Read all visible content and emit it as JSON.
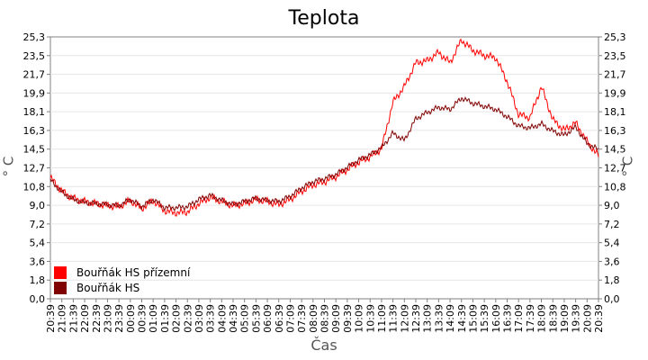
{
  "chart_data": {
    "type": "line",
    "title": "Teplota",
    "xlabel": "Čas",
    "ylabel": "° C",
    "ylim": [
      0,
      25.3
    ],
    "yticks": [
      "0,0",
      "1,8",
      "3,6",
      "5,4",
      "7,2",
      "9,0",
      "10,8",
      "12,7",
      "14,5",
      "16,3",
      "18,1",
      "19,9",
      "21,7",
      "23,5",
      "25,3"
    ],
    "xticks": [
      "20:39",
      "21:09",
      "21:39",
      "22:09",
      "22:39",
      "23:09",
      "23:39",
      "00:09",
      "00:39",
      "01:09",
      "01:39",
      "02:09",
      "02:39",
      "03:09",
      "03:39",
      "04:09",
      "04:39",
      "05:09",
      "05:39",
      "06:09",
      "06:39",
      "07:09",
      "07:39",
      "08:09",
      "08:39",
      "09:09",
      "09:39",
      "10:09",
      "10:39",
      "11:09",
      "11:39",
      "12:09",
      "12:39",
      "13:09",
      "13:39",
      "14:09",
      "14:39",
      "15:09",
      "15:39",
      "16:09",
      "16:39",
      "17:09",
      "17:39",
      "18:09",
      "18:39",
      "19:09",
      "19:39",
      "20:09",
      "20:39"
    ],
    "grid": true,
    "legend_position": "bottom-left",
    "colors": {
      "series1": "#ff0000",
      "series2": "#800000"
    },
    "series": [
      {
        "name": "Bouřňák HS přízemní",
        "values": [
          11.7,
          10.4,
          9.7,
          9.4,
          9.2,
          9.0,
          8.9,
          9.5,
          8.7,
          9.5,
          8.5,
          8.3,
          8.4,
          9.2,
          9.8,
          9.4,
          9.0,
          9.2,
          9.6,
          9.4,
          9.1,
          9.6,
          10.4,
          11.0,
          11.3,
          11.8,
          12.5,
          13.2,
          13.7,
          14.5,
          19.0,
          20.5,
          22.8,
          23.0,
          23.8,
          22.8,
          25.0,
          24.0,
          23.5,
          23.3,
          21.0,
          17.8,
          17.5,
          20.5,
          17.3,
          16.3,
          17.0,
          15.2,
          13.8
        ]
      },
      {
        "name": "Bouřňák HS",
        "values": [
          11.5,
          10.3,
          9.6,
          9.3,
          9.2,
          9.1,
          9.0,
          9.6,
          8.9,
          9.6,
          8.8,
          8.8,
          8.9,
          9.6,
          10.0,
          9.5,
          9.1,
          9.4,
          9.7,
          9.5,
          9.4,
          9.9,
          10.7,
          11.3,
          11.6,
          12.0,
          12.7,
          13.4,
          13.9,
          14.6,
          16.0,
          15.3,
          17.4,
          18.0,
          18.5,
          18.3,
          19.4,
          18.9,
          18.6,
          18.3,
          17.6,
          16.7,
          16.5,
          16.9,
          16.2,
          15.8,
          16.6,
          15.0,
          14.4
        ]
      }
    ]
  }
}
